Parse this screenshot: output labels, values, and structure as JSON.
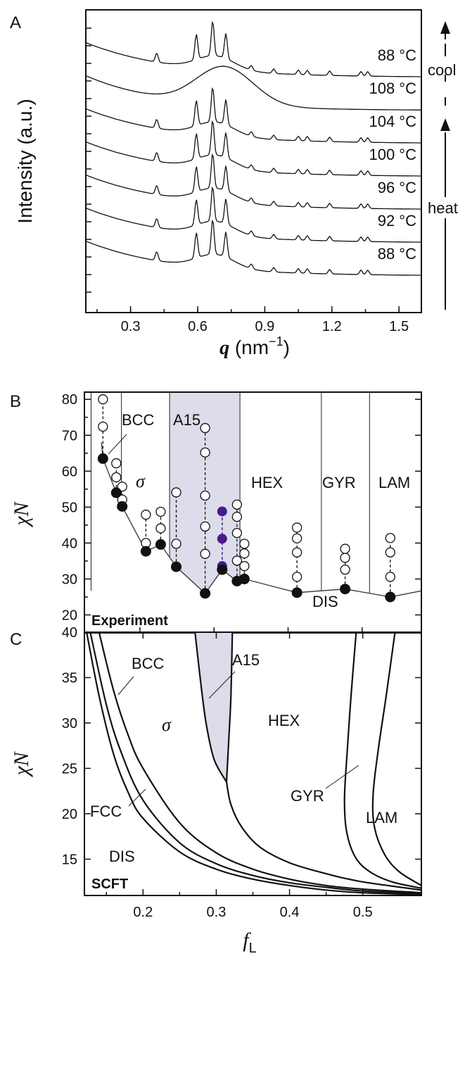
{
  "panels": {
    "a": {
      "letter": "A"
    },
    "b": {
      "letter": "B"
    },
    "c": {
      "letter": "C"
    }
  },
  "chart_data": [
    {
      "panel": "A",
      "type": "line",
      "xlabel_symbol": "q",
      "xlabel_unit": " (nm",
      "xlabel_exp": "−1",
      "xlabel_close": ")",
      "ylabel": "Intensity (a.u.)",
      "xlim": [
        0.1,
        1.6
      ],
      "xticks": [
        "0.3",
        "0.6",
        "0.9",
        "1.2",
        "1.5"
      ],
      "xtick_values": [
        0.3,
        0.6,
        0.9,
        1.2,
        1.5
      ],
      "peaks": [
        0.417,
        0.594,
        0.667,
        0.726,
        0.84,
        0.94,
        1.05,
        1.09,
        1.19,
        1.33,
        1.36
      ],
      "series": [
        {
          "name": "88 °C",
          "step": "cool",
          "state": "ordered"
        },
        {
          "name": "108 °C",
          "step": "heat",
          "state": "disordered"
        },
        {
          "name": "104 °C",
          "step": "heat",
          "state": "ordered"
        },
        {
          "name": "100 °C",
          "step": "heat",
          "state": "ordered"
        },
        {
          "name": "96 °C",
          "step": "heat",
          "state": "ordered"
        },
        {
          "name": "92 °C",
          "step": "heat",
          "state": "ordered"
        },
        {
          "name": "88 °C",
          "step": "heat",
          "state": "ordered"
        }
      ],
      "arrows": {
        "cool": "cool",
        "heat": "heat"
      }
    },
    {
      "panel": "B",
      "type": "scatter",
      "corner_label": "Experiment",
      "ylabel": "χN",
      "xlim": [
        0.125,
        0.58
      ],
      "ylim": [
        15,
        82
      ],
      "yticks": [
        "20",
        "30",
        "40",
        "50",
        "60",
        "70",
        "80"
      ],
      "ytick_values": [
        20,
        30,
        40,
        50,
        60,
        70,
        80
      ],
      "phase_labels": [
        "BCC",
        "A15",
        "σ",
        "HEX",
        "GYR",
        "LAM",
        "DIS"
      ],
      "phase_boundaries_f": [
        0.134,
        0.175,
        0.24,
        0.335,
        0.445,
        0.51
      ],
      "shaded_region": {
        "phase": "A15",
        "f_range": [
          0.24,
          0.335
        ]
      },
      "odt_curve": [
        [
          0.148,
          68
        ],
        [
          0.15,
          63.5
        ],
        [
          0.168,
          54
        ],
        [
          0.176,
          50.2
        ],
        [
          0.208,
          37.7
        ],
        [
          0.228,
          39.6
        ],
        [
          0.249,
          33.4
        ],
        [
          0.288,
          26
        ],
        [
          0.311,
          32.6
        ],
        [
          0.331,
          29.4
        ],
        [
          0.341,
          30
        ],
        [
          0.412,
          26.2
        ],
        [
          0.477,
          27.2
        ],
        [
          0.538,
          25
        ],
        [
          0.58,
          26.7
        ]
      ],
      "odt_points": [
        [
          0.15,
          63.5
        ],
        [
          0.168,
          54
        ],
        [
          0.176,
          50.2
        ],
        [
          0.208,
          37.7
        ],
        [
          0.228,
          39.6
        ],
        [
          0.249,
          33.4
        ],
        [
          0.288,
          26
        ],
        [
          0.311,
          32.6
        ],
        [
          0.331,
          29.4
        ],
        [
          0.341,
          30
        ],
        [
          0.412,
          26.2
        ],
        [
          0.477,
          27.2
        ],
        [
          0.538,
          25
        ]
      ],
      "ordered_points": [
        {
          "f": 0.15,
          "chiN": [
            72.4,
            80
          ]
        },
        {
          "f": 0.168,
          "chiN": [
            58.3,
            62.2
          ]
        },
        {
          "f": 0.176,
          "chiN": [
            52.1,
            55.7
          ]
        },
        {
          "f": 0.208,
          "chiN": [
            40,
            47.9
          ]
        },
        {
          "f": 0.228,
          "chiN": [
            44.1,
            48.7
          ]
        },
        {
          "f": 0.249,
          "chiN": [
            39.8,
            54.1
          ]
        },
        {
          "f": 0.288,
          "chiN": [
            37,
            44.6,
            53.2,
            65.2,
            72
          ]
        },
        {
          "f": 0.331,
          "chiN": [
            35.1,
            42.8,
            47.3,
            50.7
          ]
        },
        {
          "f": 0.341,
          "chiN": [
            33.6,
            37.1,
            39.8
          ]
        },
        {
          "f": 0.412,
          "chiN": [
            30.6,
            37.4,
            41.3,
            44.3
          ]
        },
        {
          "f": 0.477,
          "chiN": [
            32.6,
            35.9,
            38.4
          ]
        },
        {
          "f": 0.538,
          "chiN": [
            30.6,
            37.4,
            41.4
          ]
        }
      ],
      "highlight_points": {
        "f": 0.311,
        "chiN": [
          33.6,
          41.2,
          48.8
        ],
        "color": "#4b1a8a"
      }
    },
    {
      "panel": "C",
      "type": "line",
      "corner_label": "SCFT",
      "ylabel": "χN",
      "xlabel": "f",
      "xlabel_sub": "L",
      "xlim": [
        0.12,
        0.58
      ],
      "ylim": [
        11,
        40
      ],
      "xticks": [
        "0.2",
        "0.3",
        "0.4",
        "0.5"
      ],
      "xtick_values": [
        0.2,
        0.3,
        0.4,
        0.5
      ],
      "yticks": [
        "15",
        "20",
        "25",
        "30",
        "35",
        "40"
      ],
      "ytick_values": [
        15,
        20,
        25,
        30,
        35,
        40
      ],
      "phase_labels": [
        "BCC",
        "A15",
        "σ",
        "HEX",
        "GYR",
        "LAM",
        "FCC",
        "DIS"
      ],
      "shaded_region": {
        "phase": "A15"
      },
      "curves": [
        {
          "name": "DIS/FCC",
          "points": [
            [
              0.123,
              40
            ],
            [
              0.14,
              33
            ],
            [
              0.16,
              26.5
            ],
            [
              0.18,
              22.3
            ],
            [
              0.2,
              19.5
            ],
            [
              0.25,
              15.8
            ],
            [
              0.3,
              13.9
            ],
            [
              0.35,
              12.8
            ],
            [
              0.4,
              12.1
            ],
            [
              0.45,
              11.6
            ],
            [
              0.5,
              11.3
            ],
            [
              0.58,
              11.1
            ]
          ]
        },
        {
          "name": "FCC/BCC",
          "points": [
            [
              0.128,
              40
            ],
            [
              0.15,
              32
            ],
            [
              0.17,
              26.8
            ],
            [
              0.2,
              21.5
            ],
            [
              0.25,
              16.8
            ],
            [
              0.3,
              14.5
            ],
            [
              0.35,
              13.2
            ],
            [
              0.4,
              12.4
            ],
            [
              0.45,
              11.9
            ],
            [
              0.5,
              11.5
            ],
            [
              0.58,
              11.2
            ]
          ]
        },
        {
          "name": "BCC/σ",
          "points": [
            [
              0.14,
              40
            ],
            [
              0.16,
              33.5
            ],
            [
              0.18,
              28.6
            ],
            [
              0.2,
              25
            ],
            [
              0.25,
              19
            ],
            [
              0.3,
              15.7
            ],
            [
              0.35,
              13.9
            ],
            [
              0.4,
              12.8
            ],
            [
              0.45,
              12.1
            ],
            [
              0.5,
              11.7
            ],
            [
              0.58,
              11.3
            ]
          ]
        },
        {
          "name": "σ/A15",
          "points": [
            [
              0.271,
              40
            ],
            [
              0.278,
              35
            ],
            [
              0.286,
              30
            ],
            [
              0.297,
              26
            ],
            [
              0.314,
              23.5
            ]
          ]
        },
        {
          "name": "A15/HEX",
          "points": [
            [
              0.322,
              40
            ],
            [
              0.32,
              33
            ],
            [
              0.317,
              28
            ],
            [
              0.314,
              23.5
            ]
          ]
        },
        {
          "name": "σ/HEX",
          "points": [
            [
              0.314,
              23.5
            ],
            [
              0.32,
              21
            ],
            [
              0.335,
              18.5
            ],
            [
              0.36,
              16.3
            ],
            [
              0.4,
              14.6
            ],
            [
              0.45,
              13.4
            ],
            [
              0.5,
              12.5
            ],
            [
              0.58,
              11.6
            ]
          ]
        },
        {
          "name": "HEX/GYR",
          "points": [
            [
              0.491,
              40
            ],
            [
              0.484,
              33
            ],
            [
              0.478,
              26
            ],
            [
              0.475,
              21.5
            ],
            [
              0.478,
              18
            ],
            [
              0.49,
              15.2
            ],
            [
              0.51,
              13.6
            ],
            [
              0.54,
              12.5
            ],
            [
              0.58,
              11.8
            ]
          ]
        },
        {
          "name": "GYR/LAM",
          "points": [
            [
              0.544,
              40
            ],
            [
              0.532,
              33
            ],
            [
              0.521,
              27
            ],
            [
              0.514,
              22
            ],
            [
              0.516,
              18.5
            ],
            [
              0.53,
              15.5
            ],
            [
              0.55,
              13.6
            ],
            [
              0.58,
              12.1
            ]
          ]
        }
      ]
    }
  ]
}
